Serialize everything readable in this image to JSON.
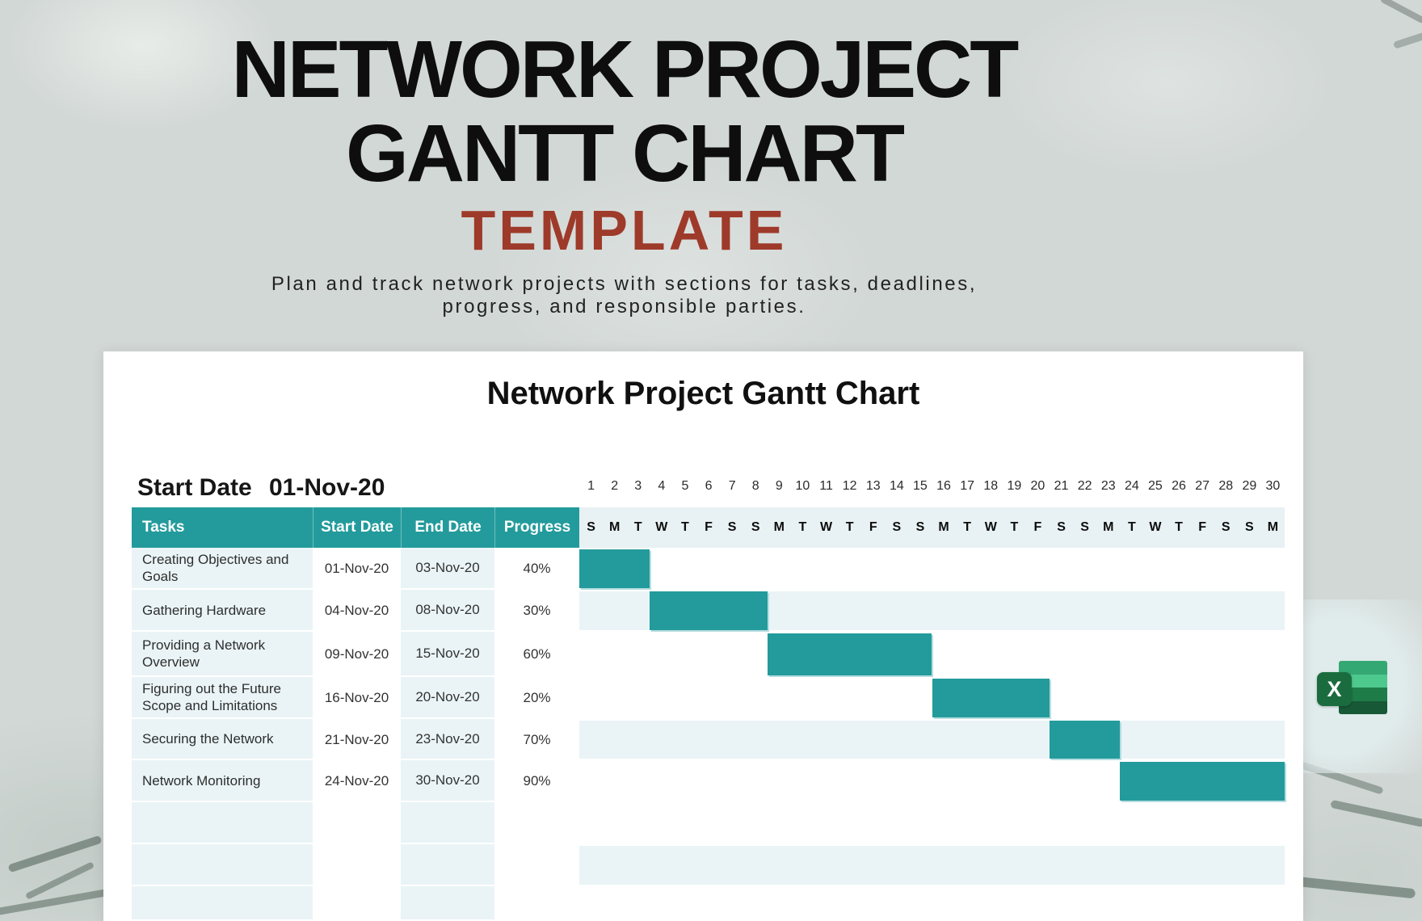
{
  "hero": {
    "title_line1": "NETWORK PROJECT",
    "title_line2": "GANTT CHART",
    "template_label": "TEMPLATE",
    "description_line1": "Plan and track network projects with sections for tasks, deadlines,",
    "description_line2": "progress, and responsible parties."
  },
  "card": {
    "title": "Network Project Gantt Chart",
    "start_date_label": "Start Date",
    "start_date_value": "01-Nov-20"
  },
  "table": {
    "headers": {
      "tasks": "Tasks",
      "start": "Start Date",
      "end": "End Date",
      "progress": "Progress"
    },
    "rows": [
      {
        "task": "Creating Objectives and Goals",
        "start": "01-Nov-20",
        "end": "03-Nov-20",
        "progress": "40%"
      },
      {
        "task": "Gathering Hardware",
        "start": "04-Nov-20",
        "end": "08-Nov-20",
        "progress": "30%"
      },
      {
        "task": "Providing a Network Overview",
        "start": "09-Nov-20",
        "end": "15-Nov-20",
        "progress": "60%"
      },
      {
        "task": "Figuring out the Future Scope and Limitations",
        "start": "16-Nov-20",
        "end": "20-Nov-20",
        "progress": "20%"
      },
      {
        "task": "Securing the Network",
        "start": "21-Nov-20",
        "end": "23-Nov-20",
        "progress": "70%"
      },
      {
        "task": "Network Monitoring",
        "start": "24-Nov-20",
        "end": "30-Nov-20",
        "progress": "90%"
      },
      {
        "task": "",
        "start": "",
        "end": "",
        "progress": ""
      },
      {
        "task": "",
        "start": "",
        "end": "",
        "progress": ""
      },
      {
        "task": "",
        "start": "",
        "end": "",
        "progress": ""
      }
    ]
  },
  "calendar": {
    "day_numbers": [
      1,
      2,
      3,
      4,
      5,
      6,
      7,
      8,
      9,
      10,
      11,
      12,
      13,
      14,
      15,
      16,
      17,
      18,
      19,
      20,
      21,
      22,
      23,
      24,
      25,
      26,
      27,
      28,
      29,
      30
    ],
    "day_letters": [
      "S",
      "M",
      "T",
      "W",
      "T",
      "F",
      "S",
      "S",
      "M",
      "T",
      "W",
      "T",
      "F",
      "S",
      "S",
      "M",
      "T",
      "W",
      "T",
      "F",
      "S",
      "S",
      "M",
      "T",
      "W",
      "T",
      "F",
      "S",
      "S",
      "M"
    ]
  },
  "chart_data": {
    "type": "bar",
    "variant": "gantt",
    "title": "Network Project Gantt Chart",
    "project_start_date": "01-Nov-20",
    "x_axis": {
      "unit": "day of November 2020",
      "range": [
        1,
        30
      ],
      "first_day_of_week_shown": "S"
    },
    "tasks": [
      {
        "name": "Creating Objectives and Goals",
        "start": "01-Nov-20",
        "end": "03-Nov-20",
        "progress_pct": 40,
        "bar_days": [
          1,
          3
        ]
      },
      {
        "name": "Gathering Hardware",
        "start": "04-Nov-20",
        "end": "08-Nov-20",
        "progress_pct": 30,
        "bar_days": [
          4,
          8
        ]
      },
      {
        "name": "Providing a Network Overview",
        "start": "09-Nov-20",
        "end": "15-Nov-20",
        "progress_pct": 60,
        "bar_days": [
          9,
          15
        ]
      },
      {
        "name": "Figuring out the Future Scope and Limitations",
        "start": "16-Nov-20",
        "end": "20-Nov-20",
        "progress_pct": 20,
        "bar_days": [
          16,
          20
        ]
      },
      {
        "name": "Securing the Network",
        "start": "21-Nov-20",
        "end": "23-Nov-20",
        "progress_pct": 70,
        "bar_days": [
          21,
          23
        ]
      },
      {
        "name": "Network Monitoring",
        "start": "24-Nov-20",
        "end": "30-Nov-20",
        "progress_pct": 90,
        "bar_days": [
          24,
          30
        ]
      }
    ],
    "legend": "none",
    "grid": "off"
  },
  "colors": {
    "teal": "#239b9c",
    "stripe": "#eaf4f6",
    "day_band": "#e8f1f3",
    "template_red": "#9e3a2a",
    "excel_bands": [
      "#34a873",
      "#4ec98d",
      "#1e7c49",
      "#175837"
    ],
    "excel_tile": "#1a6c3f"
  },
  "excel_icon": {
    "letter": "X"
  }
}
